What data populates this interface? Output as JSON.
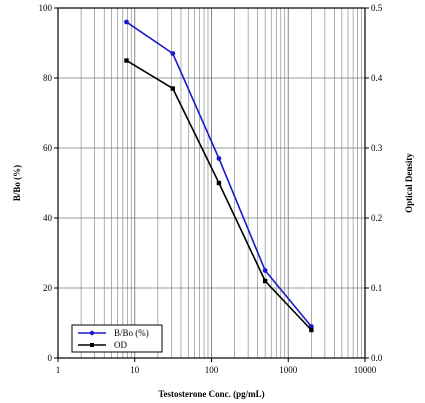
{
  "chart_data": {
    "type": "line",
    "xlabel": "Testosterone Conc. (pg/mL)",
    "ylabel": "B/Bo (%)",
    "y2label": "Optical Density",
    "x_scale": "log",
    "xlim": [
      1,
      10000
    ],
    "ylim": [
      0,
      100
    ],
    "y2lim": [
      0,
      0.5
    ],
    "x_tick_labels": [
      "1",
      "10",
      "100",
      "1000",
      "10000"
    ],
    "y_tick_labels": [
      "0",
      "20",
      "40",
      "60",
      "80",
      "100"
    ],
    "y2_tick_labels": [
      "0.0",
      "0.1",
      "0.2",
      "0.3",
      "0.4",
      "0.5"
    ],
    "grid": true,
    "legend_position": "bottom-left",
    "series": [
      {
        "name": "B/Bo (%)",
        "axis": "left",
        "color": "#1a1acc",
        "marker": "circle",
        "points": [
          [
            7.8,
            96
          ],
          [
            31.3,
            87
          ],
          [
            125,
            57
          ],
          [
            500,
            25
          ],
          [
            2000,
            9
          ]
        ]
      },
      {
        "name": "OD",
        "axis": "right",
        "color": "#000000",
        "marker": "square",
        "points": [
          [
            7.8,
            0.425
          ],
          [
            31.3,
            0.385
          ],
          [
            125,
            0.25
          ],
          [
            500,
            0.11
          ],
          [
            2000,
            0.04
          ]
        ]
      }
    ]
  }
}
